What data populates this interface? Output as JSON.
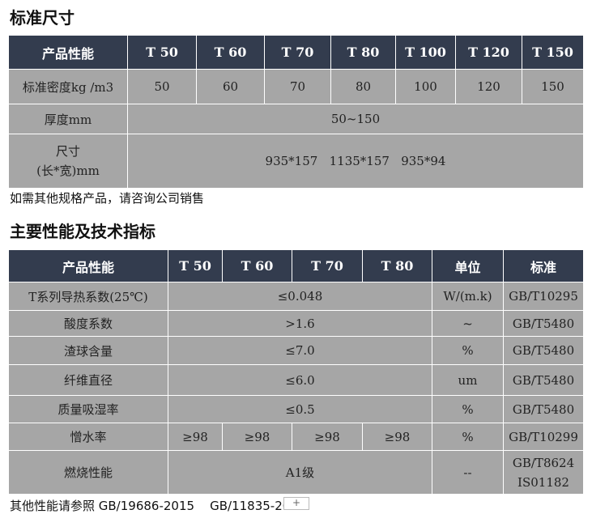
{
  "section1": {
    "title": "标准尺寸",
    "headers": [
      "产品性能",
      "T 50",
      "T 60",
      "T 70",
      "T 80",
      "T 100",
      "T 120",
      "T 150"
    ],
    "density": {
      "label": "标准密度kg /m3",
      "values": [
        "50",
        "60",
        "70",
        "80",
        "100",
        "120",
        "150"
      ]
    },
    "thickness": {
      "label": "厚度mm",
      "value": "50~150"
    },
    "size": {
      "label_line1": "尺寸",
      "label_line2": "(长*宽)mm",
      "value": "935*157   1135*157   935*94"
    },
    "note": "如需其他规格产品，请咨询公司销售"
  },
  "section2": {
    "title": "主要性能及技术指标",
    "headers": [
      "产品性能",
      "T 50",
      "T 60",
      "T 70",
      "T 80",
      "单位",
      "标准"
    ],
    "rows": [
      {
        "label": "T系列导热系数(25℃)",
        "value": "≤0.048",
        "unit": "W/(m.k)",
        "standard": "GB/T10295"
      },
      {
        "label": "酸度系数",
        "value": ">1.6",
        "unit": "~",
        "standard": "GB/T5480"
      },
      {
        "label": "渣球含量",
        "value": "≤7.0",
        "unit": "%",
        "standard": "GB/T5480"
      },
      {
        "label": "纤维直径",
        "value": "≤6.0",
        "unit": "um",
        "standard": "GB/T5480"
      },
      {
        "label": "质量吸湿率",
        "value": "≤0.5",
        "unit": "%",
        "standard": "GB/T5480"
      }
    ],
    "water": {
      "label": "憎水率",
      "values": [
        "≥98",
        "≥98",
        "≥98",
        "≥98"
      ],
      "unit": "%",
      "standard": "GB/T10299"
    },
    "fire": {
      "label": "燃烧性能",
      "value": "A1级",
      "unit": "--",
      "standard1": "GB/T8624",
      "standard2": "IS01182"
    },
    "note": "其他性能请参照 GB/19686-2015    GB/11835-20"
  },
  "plus_label": "+"
}
